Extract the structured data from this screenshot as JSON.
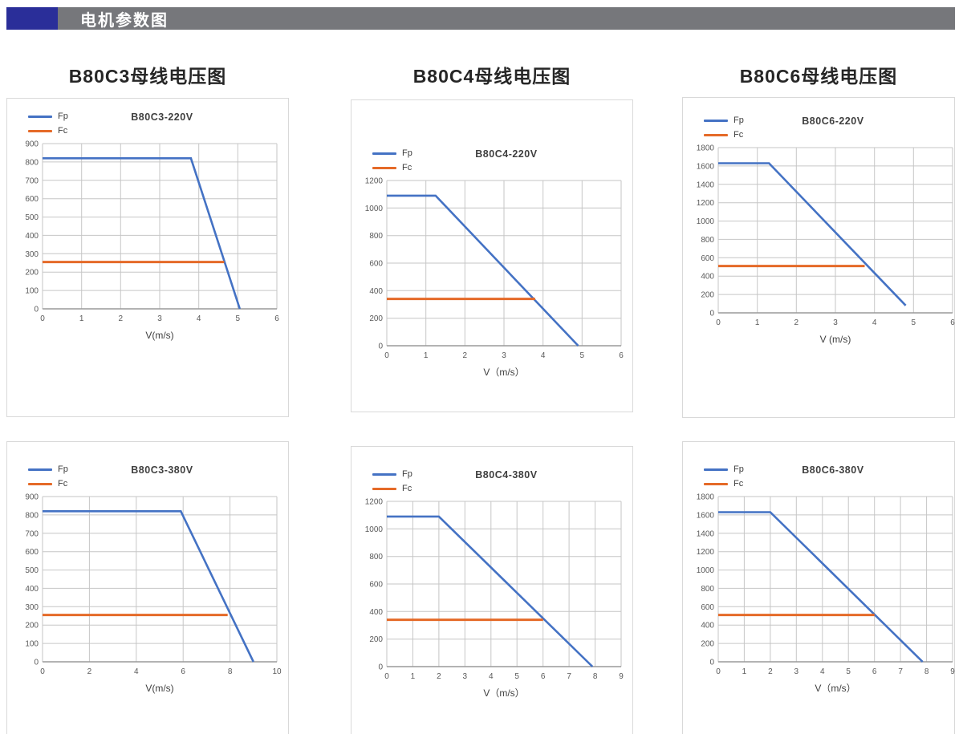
{
  "header": {
    "title": "电机参数图"
  },
  "column_titles": [
    "B80C3母线电压图",
    "B80C4母线电压图",
    "B80C6母线电压图"
  ],
  "colors": {
    "header_accent": "#2A2E99",
    "header_bar": "#76777B",
    "fp_line": "#4472C4",
    "fc_line": "#E56A28",
    "grid": "#C6C6C6",
    "axis_line": "#9A9A9A",
    "axis_text": "#595959"
  },
  "chart_data": [
    {
      "type": "line",
      "title": "B80C3-220V",
      "legend": [
        "Fp",
        "Fc"
      ],
      "xlabel": "V(m/s)",
      "xlim": [
        0,
        6
      ],
      "ylim": [
        0,
        900
      ],
      "x_ticks": [
        0,
        1,
        2,
        3,
        4,
        5,
        6
      ],
      "y_ticks": [
        0,
        100,
        200,
        300,
        400,
        500,
        600,
        700,
        800,
        900
      ],
      "grid": true,
      "legend_position": "top-left",
      "series": [
        {
          "name": "Fp",
          "points": [
            [
              0,
              820
            ],
            [
              3.8,
              820
            ],
            [
              5.05,
              0
            ]
          ]
        },
        {
          "name": "Fc",
          "points": [
            [
              0,
              255
            ],
            [
              4.65,
              255
            ]
          ]
        }
      ]
    },
    {
      "type": "line",
      "title": "B80C4-220V",
      "legend": [
        "Fp",
        "Fc"
      ],
      "xlabel": "V（m/s）",
      "xlim": [
        0,
        6
      ],
      "ylim": [
        0,
        1200
      ],
      "x_ticks": [
        0,
        1,
        2,
        3,
        4,
        5,
        6
      ],
      "y_ticks": [
        0,
        200,
        400,
        600,
        800,
        1000,
        1200
      ],
      "grid": true,
      "legend_position": "top-left",
      "series": [
        {
          "name": "Fp",
          "points": [
            [
              0,
              1090
            ],
            [
              1.25,
              1090
            ],
            [
              4.9,
              0
            ]
          ]
        },
        {
          "name": "Fc",
          "points": [
            [
              0,
              340
            ],
            [
              3.8,
              340
            ]
          ]
        }
      ]
    },
    {
      "type": "line",
      "title": "B80C6-220V",
      "legend": [
        "Fp",
        "Fc"
      ],
      "xlabel": "V (m/s)",
      "xlim": [
        0,
        6
      ],
      "ylim": [
        0,
        1800
      ],
      "x_ticks": [
        0,
        1,
        2,
        3,
        4,
        5,
        6
      ],
      "y_ticks": [
        0,
        200,
        400,
        600,
        800,
        1000,
        1200,
        1400,
        1600,
        1800
      ],
      "grid": true,
      "legend_position": "top-left",
      "series": [
        {
          "name": "Fp",
          "points": [
            [
              0,
              1630
            ],
            [
              1.3,
              1630
            ],
            [
              4.8,
              80
            ]
          ]
        },
        {
          "name": "Fc",
          "points": [
            [
              0,
              510
            ],
            [
              3.75,
              510
            ]
          ]
        }
      ]
    },
    {
      "type": "line",
      "title": "B80C3-380V",
      "legend": [
        "Fp",
        "Fc"
      ],
      "xlabel": "V(m/s)",
      "xlim": [
        0,
        10
      ],
      "ylim": [
        0,
        900
      ],
      "x_ticks": [
        0,
        2,
        4,
        6,
        8,
        10
      ],
      "y_ticks": [
        0,
        100,
        200,
        300,
        400,
        500,
        600,
        700,
        800,
        900
      ],
      "grid": true,
      "legend_position": "top-left",
      "series": [
        {
          "name": "Fp",
          "points": [
            [
              0,
              820
            ],
            [
              5.9,
              820
            ],
            [
              9.0,
              0
            ]
          ]
        },
        {
          "name": "Fc",
          "points": [
            [
              0,
              255
            ],
            [
              7.9,
              255
            ]
          ]
        }
      ]
    },
    {
      "type": "line",
      "title": "B80C4-380V",
      "legend": [
        "Fp",
        "Fc"
      ],
      "xlabel": "V（m/s）",
      "xlim": [
        0,
        9
      ],
      "ylim": [
        0,
        1200
      ],
      "x_ticks": [
        0,
        1,
        2,
        3,
        4,
        5,
        6,
        7,
        8,
        9
      ],
      "y_ticks": [
        0,
        200,
        400,
        600,
        800,
        1000,
        1200
      ],
      "grid": true,
      "legend_position": "top-left",
      "series": [
        {
          "name": "Fp",
          "points": [
            [
              0,
              1090
            ],
            [
              2.0,
              1090
            ],
            [
              7.9,
              0
            ]
          ]
        },
        {
          "name": "Fc",
          "points": [
            [
              0,
              340
            ],
            [
              6.0,
              340
            ]
          ]
        }
      ]
    },
    {
      "type": "line",
      "title": "B80C6-380V",
      "legend": [
        "Fp",
        "Fc"
      ],
      "xlabel": "V（m/s）",
      "xlim": [
        0,
        9
      ],
      "ylim": [
        0,
        1800
      ],
      "x_ticks": [
        0,
        1,
        2,
        3,
        4,
        5,
        6,
        7,
        8,
        9
      ],
      "y_ticks": [
        0,
        200,
        400,
        600,
        800,
        1000,
        1200,
        1400,
        1600,
        1800
      ],
      "grid": true,
      "legend_position": "top-left",
      "series": [
        {
          "name": "Fp",
          "points": [
            [
              0,
              1630
            ],
            [
              2.0,
              1630
            ],
            [
              7.85,
              0
            ]
          ]
        },
        {
          "name": "Fc",
          "points": [
            [
              0,
              510
            ],
            [
              6.0,
              510
            ]
          ]
        }
      ]
    }
  ]
}
